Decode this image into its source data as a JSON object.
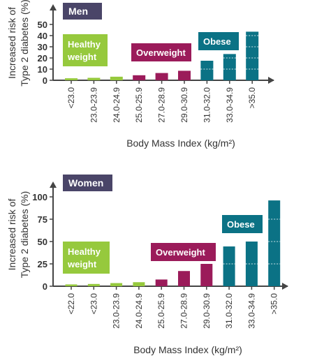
{
  "colors": {
    "healthy": "#96c93d",
    "overweight": "#9b1b5a",
    "obese": "#0b7285",
    "axis": "#444444",
    "label_box": "#4a4568",
    "text": "#333333"
  },
  "chart_data": [
    {
      "type": "bar",
      "panel_label": "Men",
      "ylabel_line1": "Increased risk of",
      "ylabel_line2": "Type 2 diabetes (%)",
      "xlabel": "Body Mass Index (kg/m²)",
      "ylim": [
        0,
        50
      ],
      "yticks": [
        0,
        10,
        20,
        30,
        40,
        50
      ],
      "categories": [
        "<23.0",
        "23.0-23.9",
        "24.0-24.9",
        "25.0-25.9",
        "27.0-28.9",
        "29.0-30.9",
        "31.0-32.0",
        "33.0-34.9",
        ">35.0"
      ],
      "values": [
        1.8,
        2.2,
        3.2,
        4.5,
        6.5,
        8.5,
        17.5,
        23.5,
        43.5
      ],
      "groups": [
        "healthy",
        "healthy",
        "healthy",
        "overweight",
        "overweight",
        "overweight",
        "obese",
        "obese",
        "obese"
      ],
      "group_labels": {
        "healthy": [
          "Healthy",
          "weight"
        ],
        "overweight": [
          "Overweight"
        ],
        "obese": [
          "Obese"
        ]
      }
    },
    {
      "type": "bar",
      "panel_label": "Women",
      "ylabel_line1": "Increased risk of",
      "ylabel_line2": "Type 2 diabetes (%)",
      "xlabel": "Body Mass Index (kg/m²)",
      "ylim": [
        0,
        100
      ],
      "yticks": [
        0,
        25,
        50,
        75,
        100
      ],
      "categories": [
        "<22.0",
        "<23.0",
        "23.0-23.9",
        "24.0-24.9",
        "25.0-25.9",
        "27.0-28.9",
        "29.0-30.9",
        "31.0-32.0",
        "33.0-34.9",
        ">35.0"
      ],
      "values": [
        2.0,
        2.5,
        3.5,
        4.5,
        7.5,
        17.0,
        25.0,
        44.5,
        50.0,
        96.0
      ],
      "groups": [
        "healthy",
        "healthy",
        "healthy",
        "healthy",
        "overweight",
        "overweight",
        "overweight",
        "obese",
        "obese",
        "obese"
      ],
      "group_labels": {
        "healthy": [
          "Healthy",
          "weight"
        ],
        "overweight": [
          "Overweight"
        ],
        "obese": [
          "Obese"
        ]
      }
    }
  ]
}
